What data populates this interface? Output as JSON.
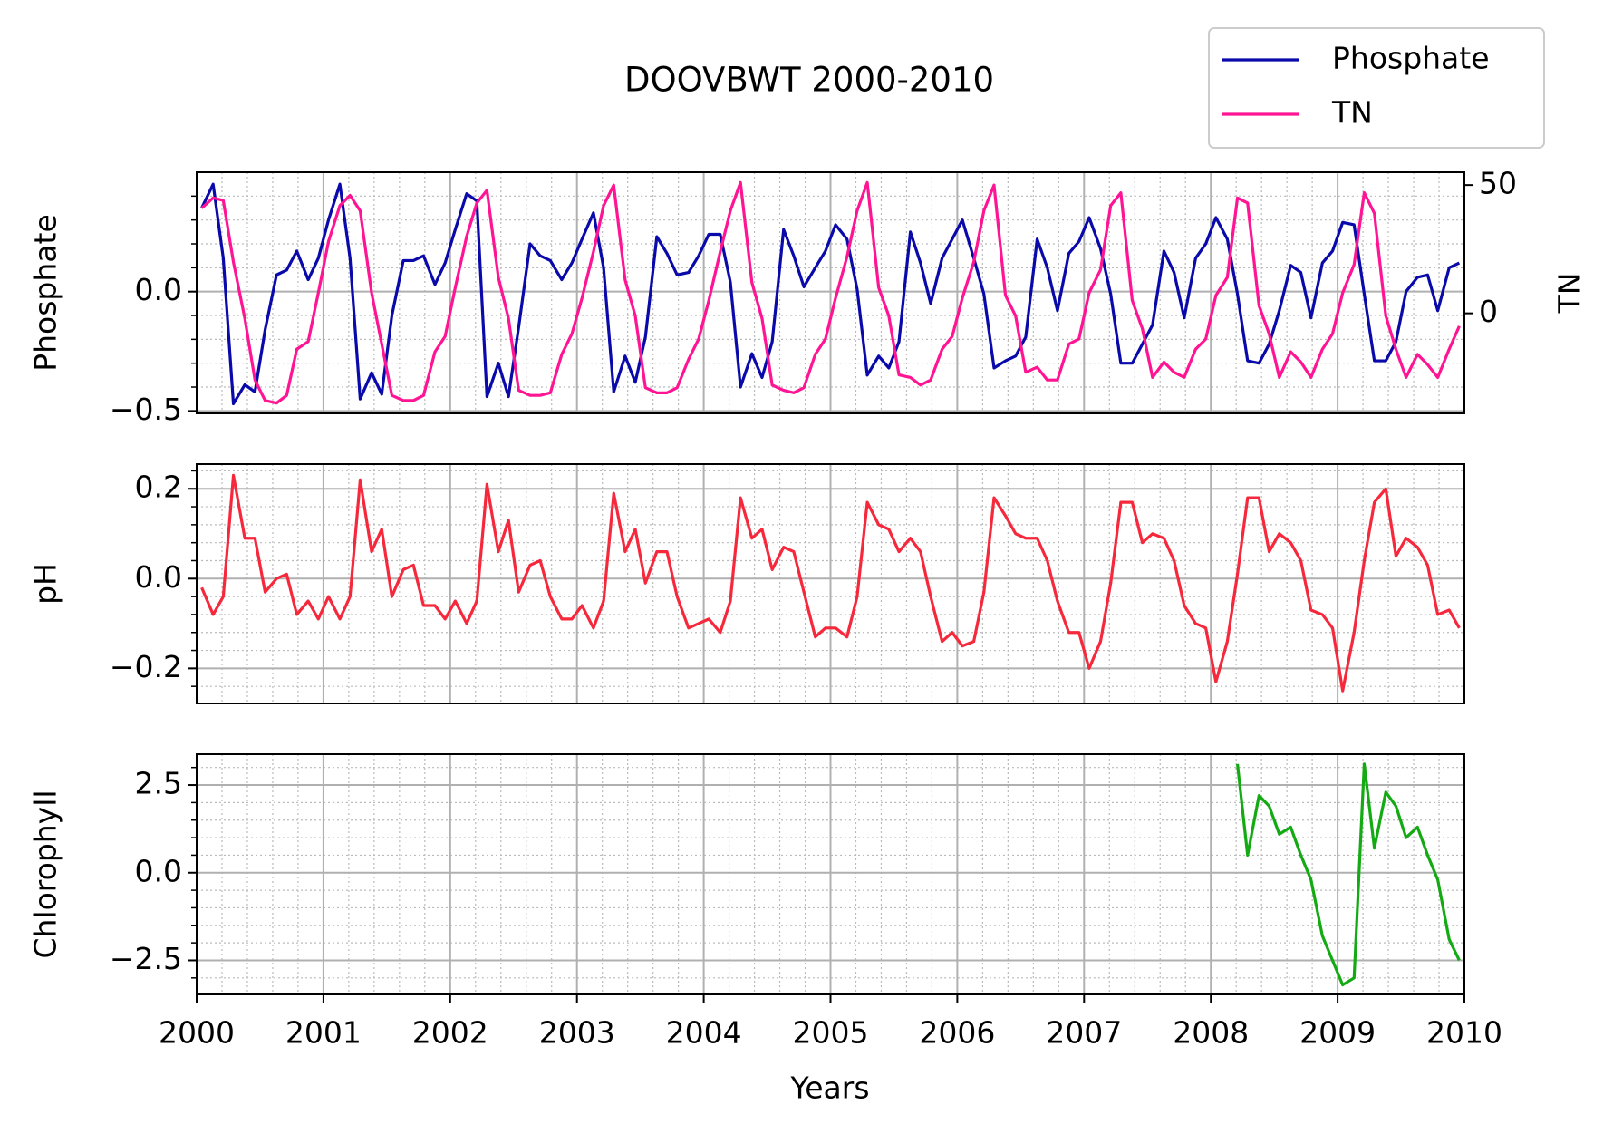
{
  "chart_data": {
    "type": "line",
    "title": "DOOVBWT 2000-2010",
    "xlabel": "Years",
    "grid": true,
    "legend": "upper right",
    "xlim": [
      2000,
      2010
    ],
    "xticks": [
      2000,
      2001,
      2002,
      2003,
      2004,
      2005,
      2006,
      2007,
      2008,
      2009,
      2010
    ],
    "x": [
      2000.04,
      2000.13,
      2000.21,
      2000.29,
      2000.38,
      2000.46,
      2000.54,
      2000.63,
      2000.71,
      2000.79,
      2000.88,
      2000.96,
      2001.04,
      2001.13,
      2001.21,
      2001.29,
      2001.38,
      2001.46,
      2001.54,
      2001.63,
      2001.71,
      2001.79,
      2001.88,
      2001.96,
      2002.04,
      2002.13,
      2002.21,
      2002.29,
      2002.38,
      2002.46,
      2002.54,
      2002.63,
      2002.71,
      2002.79,
      2002.88,
      2002.96,
      2003.04,
      2003.13,
      2003.21,
      2003.29,
      2003.38,
      2003.46,
      2003.54,
      2003.63,
      2003.71,
      2003.79,
      2003.88,
      2003.96,
      2004.04,
      2004.13,
      2004.21,
      2004.29,
      2004.38,
      2004.46,
      2004.54,
      2004.63,
      2004.71,
      2004.79,
      2004.88,
      2004.96,
      2005.04,
      2005.13,
      2005.21,
      2005.29,
      2005.38,
      2005.46,
      2005.54,
      2005.63,
      2005.71,
      2005.79,
      2005.88,
      2005.96,
      2006.04,
      2006.13,
      2006.21,
      2006.29,
      2006.38,
      2006.46,
      2006.54,
      2006.63,
      2006.71,
      2006.79,
      2006.88,
      2006.96,
      2007.04,
      2007.13,
      2007.21,
      2007.29,
      2007.38,
      2007.46,
      2007.54,
      2007.63,
      2007.71,
      2007.79,
      2007.88,
      2007.96,
      2008.04,
      2008.13,
      2008.21,
      2008.29,
      2008.38,
      2008.46,
      2008.54,
      2008.63,
      2008.71,
      2008.79,
      2008.88,
      2008.96,
      2009.04,
      2009.13,
      2009.21,
      2009.29,
      2009.38,
      2009.46,
      2009.54,
      2009.63,
      2009.71,
      2009.79,
      2009.88,
      2009.96
    ],
    "panels": [
      {
        "ylabel": "Phosphate",
        "ylim": [
          -0.51,
          0.5
        ],
        "yticks": [
          {
            "value": -0.5,
            "label": "−0.5"
          },
          {
            "value": 0,
            "label": "0.0"
          }
        ],
        "y2label": "TN",
        "y2lim": [
          -39,
          55
        ],
        "y2ticks": [
          0,
          50
        ],
        "series": [
          {
            "name": "Phosphate",
            "color": "#0a0aaa",
            "values": [
              0.35,
              0.45,
              0.14,
              -0.47,
              -0.39,
              -0.42,
              -0.16,
              0.07,
              0.09,
              0.17,
              0.05,
              0.14,
              0.3,
              0.45,
              0.14,
              -0.45,
              -0.34,
              -0.43,
              -0.1,
              0.13,
              0.13,
              0.15,
              0.03,
              0.12,
              0.26,
              0.41,
              0.38,
              -0.44,
              -0.3,
              -0.44,
              -0.15,
              0.2,
              0.15,
              0.13,
              0.05,
              0.12,
              0.22,
              0.33,
              0.1,
              -0.42,
              -0.27,
              -0.38,
              -0.19,
              0.23,
              0.16,
              0.07,
              0.08,
              0.15,
              0.24,
              0.24,
              0.04,
              -0.4,
              -0.26,
              -0.36,
              -0.21,
              0.26,
              0.15,
              0.02,
              0.1,
              0.17,
              0.28,
              0.22,
              0.01,
              -0.35,
              -0.27,
              -0.32,
              -0.21,
              0.25,
              0.12,
              -0.05,
              0.14,
              0.22,
              0.3,
              0.14,
              -0.01,
              -0.32,
              -0.29,
              -0.27,
              -0.19,
              0.22,
              0.1,
              -0.08,
              0.16,
              0.21,
              0.31,
              0.18,
              -0.01,
              -0.3,
              -0.3,
              -0.22,
              -0.14,
              0.17,
              0.08,
              -0.11,
              0.14,
              0.2,
              0.31,
              0.22,
              -0.01,
              -0.29,
              -0.3,
              -0.22,
              -0.08,
              0.11,
              0.08,
              -0.11,
              0.12,
              0.17,
              0.29,
              0.28,
              -0.01,
              -0.29,
              -0.29,
              -0.21,
              0.0,
              0.06,
              0.07,
              -0.08,
              0.1,
              0.12
            ]
          },
          {
            "name": "TN",
            "color": "#ff1493",
            "axis": "y2",
            "values": [
              41,
              45,
              44,
              20,
              -2,
              -26,
              -34,
              -35,
              -32,
              -14,
              -11,
              8,
              28,
              42,
              46,
              40,
              8,
              -12,
              -32,
              -34,
              -34,
              -32,
              -15,
              -9,
              10,
              30,
              43,
              48,
              14,
              -2,
              -30,
              -32,
              -32,
              -31,
              -16,
              -8,
              6,
              24,
              42,
              50,
              13,
              -1,
              -29,
              -31,
              -31,
              -29,
              -18,
              -10,
              5,
              24,
              40,
              51,
              12,
              -2,
              -28,
              -30,
              -31,
              -29,
              -16,
              -10,
              6,
              22,
              40,
              51,
              10,
              -1,
              -24,
              -25,
              -28,
              -26,
              -14,
              -9,
              6,
              20,
              40,
              50,
              7,
              -1,
              -23,
              -21,
              -26,
              -26,
              -12,
              -10,
              8,
              17,
              42,
              47,
              5,
              -6,
              -25,
              -19,
              -23,
              -25,
              -14,
              -10,
              7,
              14,
              45,
              43,
              3,
              -8,
              -25,
              -15,
              -19,
              -25,
              -14,
              -8,
              8,
              19,
              47,
              39,
              -1,
              -14,
              -25,
              -16,
              -20,
              -25,
              -14,
              -5
            ]
          }
        ]
      },
      {
        "ylabel": "pH",
        "ylim": [
          -0.278,
          0.255
        ],
        "yticks": [
          {
            "value": -0.2,
            "label": "−0.2"
          },
          {
            "value": 0,
            "label": "0.0"
          },
          0.2
        ],
        "series": [
          {
            "color": "#f5283c",
            "values": [
              -0.02,
              -0.08,
              -0.04,
              0.23,
              0.09,
              0.09,
              -0.03,
              0.0,
              0.01,
              -0.08,
              -0.05,
              -0.09,
              -0.04,
              -0.09,
              -0.04,
              0.22,
              0.06,
              0.11,
              -0.04,
              0.02,
              0.03,
              -0.06,
              -0.06,
              -0.09,
              -0.05,
              -0.1,
              -0.05,
              0.21,
              0.06,
              0.13,
              -0.03,
              0.03,
              0.04,
              -0.04,
              -0.09,
              -0.09,
              -0.06,
              -0.11,
              -0.05,
              0.19,
              0.06,
              0.11,
              -0.01,
              0.06,
              0.06,
              -0.04,
              -0.11,
              -0.1,
              -0.09,
              -0.12,
              -0.05,
              0.18,
              0.09,
              0.11,
              0.02,
              0.07,
              0.06,
              -0.03,
              -0.13,
              -0.11,
              -0.11,
              -0.13,
              -0.04,
              0.17,
              0.12,
              0.11,
              0.06,
              0.09,
              0.06,
              -0.04,
              -0.14,
              -0.12,
              -0.15,
              -0.14,
              -0.03,
              0.18,
              0.14,
              0.1,
              0.09,
              0.09,
              0.04,
              -0.05,
              -0.12,
              -0.12,
              -0.2,
              -0.14,
              -0.01,
              0.17,
              0.17,
              0.08,
              0.1,
              0.09,
              0.04,
              -0.06,
              -0.1,
              -0.11,
              -0.23,
              -0.14,
              0.01,
              0.18,
              0.18,
              0.06,
              0.1,
              0.08,
              0.04,
              -0.07,
              -0.08,
              -0.11,
              -0.25,
              -0.12,
              0.04,
              0.17,
              0.2,
              0.05,
              0.09,
              0.07,
              0.03,
              -0.08,
              -0.07,
              -0.11
            ]
          }
        ]
      },
      {
        "ylabel": "Chlorophyll",
        "ylim": [
          -3.47,
          3.38
        ],
        "yticks": [
          {
            "value": -2.5,
            "label": "−2.5"
          },
          {
            "value": 0,
            "label": "0.0"
          },
          2.5
        ],
        "series": [
          {
            "color": "#14aa14",
            "values": [
              null,
              null,
              null,
              null,
              null,
              null,
              null,
              null,
              null,
              null,
              null,
              null,
              null,
              null,
              null,
              null,
              null,
              null,
              null,
              null,
              null,
              null,
              null,
              null,
              null,
              null,
              null,
              null,
              null,
              null,
              null,
              null,
              null,
              null,
              null,
              null,
              null,
              null,
              null,
              null,
              null,
              null,
              null,
              null,
              null,
              null,
              null,
              null,
              null,
              null,
              null,
              null,
              null,
              null,
              null,
              null,
              null,
              null,
              null,
              null,
              null,
              null,
              null,
              null,
              null,
              null,
              null,
              null,
              null,
              null,
              null,
              null,
              null,
              null,
              null,
              null,
              null,
              null,
              null,
              null,
              null,
              null,
              null,
              null,
              null,
              null,
              null,
              null,
              null,
              null,
              null,
              null,
              null,
              null,
              null,
              null,
              null,
              null,
              3.1,
              0.5,
              2.2,
              1.9,
              1.1,
              1.3,
              0.5,
              -0.2,
              -1.8,
              -2.5,
              -3.2,
              -3.0,
              3.1,
              0.7,
              2.3,
              1.9,
              1.0,
              1.3,
              0.5,
              -0.2,
              -1.9,
              -2.5
            ]
          }
        ]
      }
    ]
  }
}
